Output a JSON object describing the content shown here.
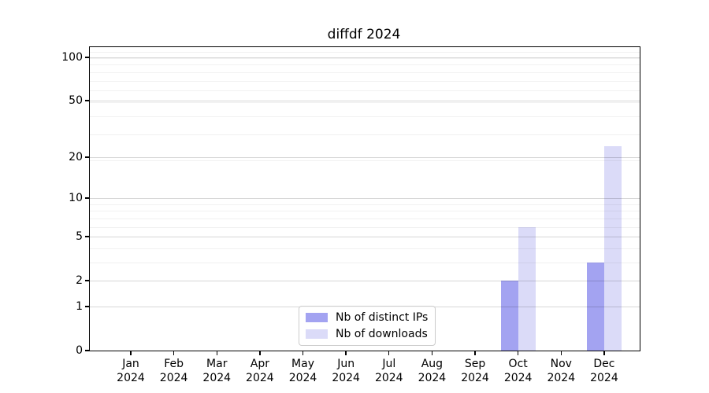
{
  "chart_data": {
    "type": "bar",
    "title": "diffdf 2024",
    "categories": [
      "Jan 2024",
      "Feb 2024",
      "Mar 2024",
      "Apr 2024",
      "May 2024",
      "Jun 2024",
      "Jul 2024",
      "Aug 2024",
      "Sep 2024",
      "Oct 2024",
      "Nov 2024",
      "Dec 2024"
    ],
    "series": [
      {
        "name": "Nb of distinct IPs",
        "color": "#a3a3f1",
        "values": [
          0,
          0,
          0,
          0,
          0,
          0,
          0,
          0,
          0,
          2,
          0,
          3
        ]
      },
      {
        "name": "Nb of downloads",
        "color": "#dbdbf8",
        "values": [
          0,
          0,
          0,
          0,
          0,
          0,
          0,
          0,
          0,
          6,
          0,
          24
        ]
      }
    ],
    "xlabel": "",
    "ylabel": "",
    "y_axis": {
      "scale": "log1p",
      "ticks": [
        0,
        1,
        2,
        5,
        10,
        20,
        50,
        100
      ],
      "minor_gridlines": [
        3,
        4,
        6,
        7,
        8,
        9,
        19,
        29,
        39,
        49,
        59,
        69,
        79,
        89,
        99,
        109
      ],
      "ylim": [
        0,
        117.5
      ]
    },
    "grid": {
      "enabled": true,
      "drawn_above_bars": true
    },
    "legend": {
      "position": "lower center"
    },
    "background": "#ffffff"
  }
}
